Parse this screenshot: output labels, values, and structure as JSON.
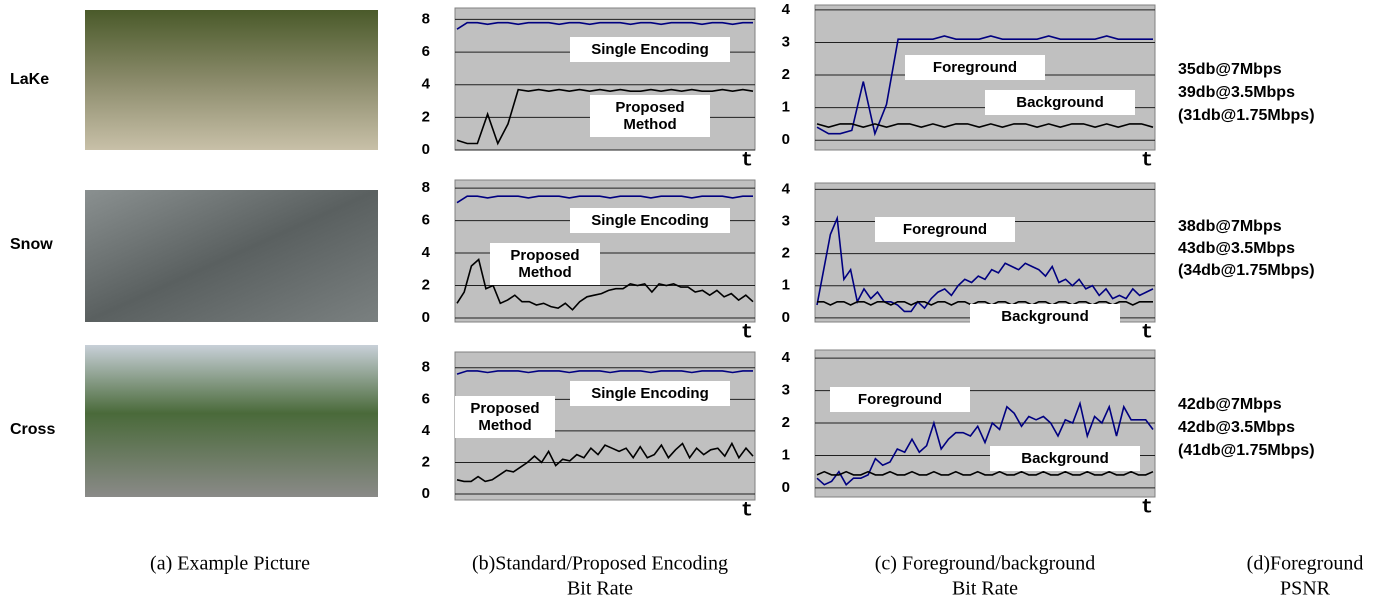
{
  "rows": [
    {
      "label": "LaKe",
      "psnr": [
        "35db@7Mbps",
        "39db@3.5Mbps",
        "(31db@1.75Mbps)"
      ]
    },
    {
      "label": "Snow",
      "psnr": [
        "38db@7Mbps",
        "43db@3.5Mbps",
        "(34db@1.75Mbps)"
      ]
    },
    {
      "label": "Cross",
      "psnr": [
        "42db@7Mbps",
        "42db@3.5Mbps",
        "(41db@1.75Mbps)"
      ]
    }
  ],
  "captions": [
    [
      "(a) Example Picture"
    ],
    [
      "(b)Standard/Proposed Encoding",
      "Bit Rate"
    ],
    [
      "(c) Foreground/background",
      "Bit Rate"
    ],
    [
      "(d)Foreground",
      "PSNR"
    ]
  ],
  "chart_data": [
    {
      "type": "line",
      "x_label": "t",
      "ylim": [
        0,
        8.7
      ],
      "yticks": [
        0,
        2,
        4,
        6,
        8
      ],
      "grid": true,
      "series": [
        {
          "name": "Single Encoding",
          "color": "#000080",
          "values": [
            7.4,
            7.8,
            7.8,
            7.7,
            7.8,
            7.8,
            7.7,
            7.8,
            7.8,
            7.8,
            7.7,
            7.8,
            7.8,
            7.7,
            7.8,
            7.8,
            7.8,
            7.7,
            7.8,
            7.8,
            7.7,
            7.8,
            7.8,
            7.8,
            7.7,
            7.8,
            7.8,
            7.7,
            7.8,
            7.8
          ]
        },
        {
          "name": "Proposed Method",
          "color": "#000000",
          "values": [
            0.6,
            0.4,
            0.4,
            2.2,
            0.4,
            1.6,
            3.7,
            3.6,
            3.7,
            3.6,
            3.7,
            3.6,
            3.7,
            3.6,
            3.7,
            3.6,
            3.7,
            3.6,
            3.6,
            3.7,
            3.6,
            3.7,
            3.6,
            3.7,
            3.6,
            3.6,
            3.7,
            3.6,
            3.7,
            3.6
          ]
        }
      ]
    },
    {
      "type": "line",
      "x_label": "t",
      "ylim": [
        -0.3,
        4.15
      ],
      "yticks": [
        0,
        1,
        2,
        3,
        4
      ],
      "grid": true,
      "series": [
        {
          "name": "Foreground",
          "color": "#000080",
          "values": [
            0.4,
            0.2,
            0.2,
            0.3,
            1.8,
            0.2,
            1.1,
            3.1,
            3.1,
            3.1,
            3.1,
            3.2,
            3.1,
            3.1,
            3.1,
            3.2,
            3.1,
            3.1,
            3.1,
            3.1,
            3.2,
            3.1,
            3.1,
            3.1,
            3.1,
            3.2,
            3.1,
            3.1,
            3.1,
            3.1
          ]
        },
        {
          "name": "Background",
          "color": "#000000",
          "values": [
            0.5,
            0.4,
            0.5,
            0.5,
            0.4,
            0.5,
            0.4,
            0.5,
            0.5,
            0.4,
            0.5,
            0.4,
            0.5,
            0.5,
            0.4,
            0.5,
            0.4,
            0.5,
            0.5,
            0.4,
            0.5,
            0.4,
            0.5,
            0.5,
            0.4,
            0.5,
            0.4,
            0.5,
            0.5,
            0.4
          ]
        }
      ]
    },
    {
      "type": "line",
      "x_label": "t",
      "ylim": [
        -0.25,
        8.5
      ],
      "yticks": [
        0,
        2,
        4,
        6,
        8
      ],
      "grid": true,
      "series": [
        {
          "name": "Single Encoding",
          "color": "#000080",
          "values": [
            7.1,
            7.5,
            7.5,
            7.4,
            7.5,
            7.5,
            7.5,
            7.4,
            7.5,
            7.5,
            7.5,
            7.4,
            7.5,
            7.5,
            7.5,
            7.4,
            7.5,
            7.5,
            7.5,
            7.4,
            7.5,
            7.5,
            7.5,
            7.4,
            7.5,
            7.5,
            7.5,
            7.4,
            7.5,
            7.5
          ]
        },
        {
          "name": "Proposed Method",
          "color": "#000000",
          "values": [
            0.9,
            1.6,
            3.2,
            3.6,
            1.8,
            2.0,
            0.9,
            1.1,
            1.4,
            1.0,
            1.0,
            0.8,
            0.9,
            0.7,
            0.6,
            0.9,
            0.5,
            1.0,
            1.3,
            1.4,
            1.5,
            1.7,
            1.8,
            1.8,
            2.1,
            2.0,
            2.1,
            1.6,
            2.1,
            2.0,
            2.1,
            1.9,
            1.9,
            1.6,
            1.7,
            1.4,
            1.7,
            1.3,
            1.5,
            1.1,
            1.4,
            1.0
          ]
        }
      ]
    },
    {
      "type": "line",
      "x_label": "t",
      "ylim": [
        -0.13,
        4.2
      ],
      "yticks": [
        0,
        1,
        2,
        3,
        4
      ],
      "grid": true,
      "series": [
        {
          "name": "Foreground",
          "color": "#000080",
          "values": [
            0.4,
            1.5,
            2.6,
            3.1,
            1.2,
            1.5,
            0.5,
            0.9,
            0.6,
            0.8,
            0.5,
            0.5,
            0.4,
            0.2,
            0.2,
            0.5,
            0.3,
            0.6,
            0.8,
            0.9,
            0.7,
            1.0,
            1.2,
            1.1,
            1.3,
            1.2,
            1.5,
            1.4,
            1.7,
            1.6,
            1.5,
            1.7,
            1.6,
            1.5,
            1.3,
            1.6,
            1.1,
            1.2,
            1.0,
            1.2,
            0.9,
            1.0,
            0.7,
            0.9,
            0.6,
            0.7,
            0.6,
            0.9,
            0.7,
            0.8,
            0.9
          ]
        },
        {
          "name": "Background",
          "color": "#000000",
          "values": [
            0.5,
            0.5,
            0.4,
            0.5,
            0.5,
            0.4,
            0.5,
            0.5,
            0.4,
            0.5,
            0.5,
            0.4,
            0.5,
            0.5,
            0.4,
            0.5,
            0.5,
            0.4,
            0.5,
            0.5,
            0.4,
            0.5,
            0.5,
            0.4,
            0.5,
            0.5,
            0.4,
            0.5,
            0.5,
            0.4,
            0.5,
            0.5,
            0.4,
            0.5,
            0.5,
            0.4,
            0.5,
            0.5,
            0.4,
            0.5,
            0.5,
            0.4,
            0.5,
            0.5,
            0.4,
            0.5,
            0.5,
            0.4,
            0.5,
            0.5,
            0.5
          ]
        }
      ]
    },
    {
      "type": "line",
      "x_label": "t",
      "ylim": [
        -0.38,
        9.0
      ],
      "yticks": [
        0,
        2,
        4,
        6,
        8
      ],
      "grid": true,
      "series": [
        {
          "name": "Single Encoding",
          "color": "#000080",
          "values": [
            7.6,
            7.8,
            7.8,
            7.7,
            7.8,
            7.8,
            7.8,
            7.7,
            7.8,
            7.8,
            7.8,
            7.7,
            7.8,
            7.8,
            7.8,
            7.7,
            7.8,
            7.8,
            7.8,
            7.7,
            7.8,
            7.8,
            7.8,
            7.7,
            7.8,
            7.8,
            7.8,
            7.7,
            7.8,
            7.8
          ]
        },
        {
          "name": "Proposed Method",
          "color": "#000000",
          "values": [
            0.9,
            0.8,
            0.8,
            1.1,
            0.8,
            0.9,
            1.2,
            1.5,
            1.4,
            1.7,
            2.0,
            2.4,
            2.0,
            2.7,
            1.8,
            2.2,
            2.1,
            2.5,
            2.3,
            2.9,
            2.5,
            3.1,
            2.9,
            2.7,
            2.9,
            2.3,
            3.0,
            2.3,
            2.5,
            3.1,
            2.3,
            2.8,
            3.2,
            2.3,
            2.9,
            2.5,
            2.8,
            2.9,
            2.4,
            3.2,
            2.3,
            2.9,
            2.4
          ]
        }
      ]
    },
    {
      "type": "line",
      "x_label": "t",
      "ylim": [
        -0.28,
        4.25
      ],
      "yticks": [
        0,
        1,
        2,
        3,
        4
      ],
      "grid": true,
      "series": [
        {
          "name": "Foreground",
          "color": "#000080",
          "values": [
            0.3,
            0.1,
            0.2,
            0.5,
            0.1,
            0.3,
            0.3,
            0.4,
            0.9,
            0.7,
            0.8,
            1.2,
            1.1,
            1.5,
            1.1,
            1.3,
            2.0,
            1.2,
            1.5,
            1.7,
            1.7,
            1.6,
            1.9,
            1.4,
            2.0,
            1.8,
            2.5,
            2.3,
            1.9,
            2.2,
            2.1,
            2.2,
            2.0,
            1.6,
            2.1,
            2.0,
            2.6,
            1.6,
            2.2,
            2.0,
            2.5,
            1.6,
            2.5,
            2.1,
            2.1,
            2.1,
            1.8
          ]
        },
        {
          "name": "Background",
          "color": "#000000",
          "values": [
            0.4,
            0.5,
            0.4,
            0.4,
            0.5,
            0.4,
            0.4,
            0.5,
            0.4,
            0.4,
            0.5,
            0.4,
            0.4,
            0.5,
            0.4,
            0.4,
            0.5,
            0.4,
            0.4,
            0.5,
            0.4,
            0.4,
            0.5,
            0.4,
            0.4,
            0.5,
            0.4,
            0.4,
            0.5,
            0.4,
            0.4,
            0.5,
            0.4,
            0.4,
            0.5,
            0.4,
            0.4,
            0.5,
            0.4,
            0.4,
            0.5,
            0.4,
            0.4,
            0.5,
            0.4,
            0.4,
            0.5
          ]
        }
      ]
    }
  ]
}
